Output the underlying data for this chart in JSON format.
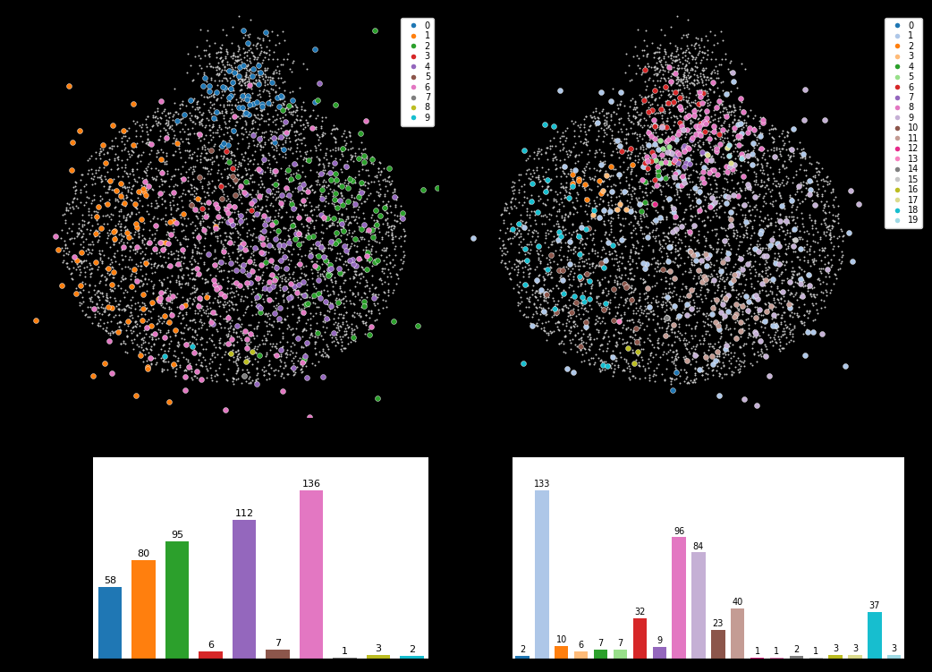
{
  "m10_bar_values": [
    58,
    80,
    95,
    6,
    112,
    7,
    136,
    1,
    3,
    2
  ],
  "m10_bar_colors": [
    "#1f77b4",
    "#ff7f0e",
    "#2ca02c",
    "#d62728",
    "#9467bd",
    "#8c564b",
    "#e377c2",
    "#7f7f7f",
    "#bcbd22",
    "#17becf"
  ],
  "m10_labels": [
    "0",
    "1",
    "2",
    "3",
    "4",
    "5",
    "6",
    "7",
    "8",
    "9"
  ],
  "m20_bar_values": [
    2,
    133,
    10,
    6,
    7,
    7,
    32,
    9,
    96,
    84,
    23,
    40,
    1,
    1,
    2,
    1,
    3,
    3,
    37,
    3
  ],
  "m20_bar_colors": [
    "#1f77b4",
    "#aec7e8",
    "#ff7f0e",
    "#ffbb78",
    "#2ca02c",
    "#98df8a",
    "#d62728",
    "#9467bd",
    "#e377c2",
    "#c5b0d5",
    "#8c564b",
    "#c49c94",
    "#e7298a",
    "#f781bf",
    "#7f7f7f",
    "#c7c7c7",
    "#bcbd22",
    "#dbdb8d",
    "#17becf",
    "#9edae5"
  ],
  "m20_labels": [
    "0",
    "1",
    "2",
    "3",
    "4",
    "5",
    "6",
    "7",
    "8",
    "9",
    "10",
    "11",
    "12",
    "13",
    "14",
    "15",
    "16",
    "17",
    "18",
    "19"
  ],
  "scatter_bg_color": "#c8c8c8",
  "fig_bg": "black",
  "plot_bg": "white",
  "fig_width": 10.42,
  "fig_height": 7.51
}
